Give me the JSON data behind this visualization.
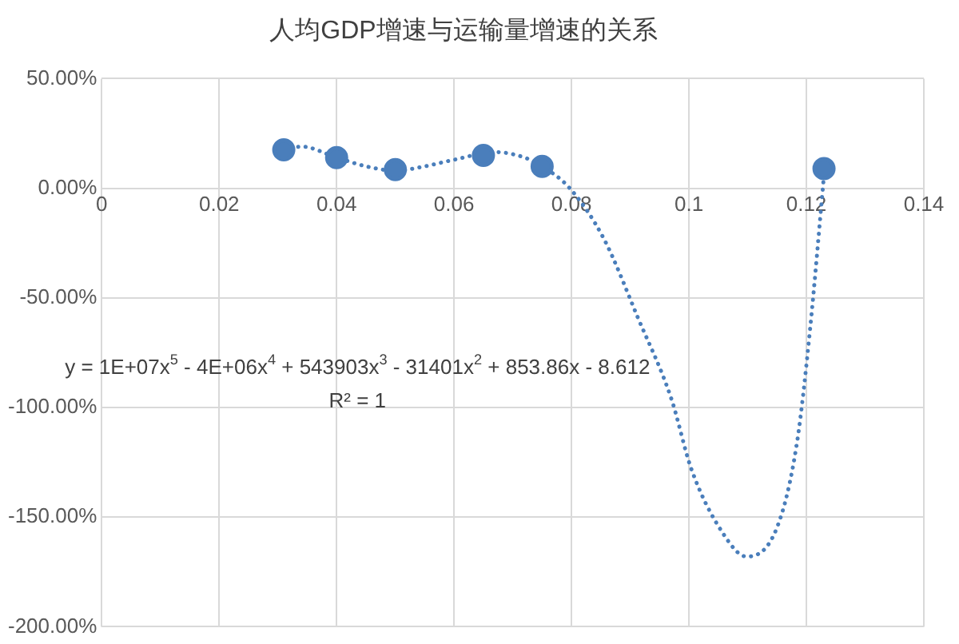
{
  "chart_data": {
    "type": "scatter",
    "title": "人均GDP增速与运输量增速的关系",
    "xlim": [
      0,
      0.14
    ],
    "xticks": [
      0,
      0.02,
      0.04,
      0.06,
      0.08,
      0.1,
      0.12,
      0.14
    ],
    "ylim": [
      -200,
      50
    ],
    "yticks": [
      {
        "value": 50,
        "label": "50.00%"
      },
      {
        "value": 0,
        "label": "0.00%"
      },
      {
        "value": -50,
        "label": "-50.00%"
      },
      {
        "value": -100,
        "label": "-100.00%"
      },
      {
        "value": -150,
        "label": "-150.00%"
      },
      {
        "value": -200,
        "label": "-200.00%"
      }
    ],
    "grid": true,
    "legend": false,
    "marker": "circle",
    "series": [
      {
        "type": "scatter",
        "color": "#4a7ebb",
        "x": [
          0.031,
          0.04,
          0.05,
          0.065,
          0.075,
          0.123
        ],
        "values": [
          17.5,
          14,
          8.5,
          15,
          10,
          9
        ]
      },
      {
        "type": "line",
        "color": "#4a7ebb",
        "line_style": "dotted",
        "marker": "none",
        "x": [
          0.031,
          0.034,
          0.04,
          0.045,
          0.05,
          0.055,
          0.06,
          0.067,
          0.072,
          0.075,
          0.0797,
          0.0855,
          0.0913,
          0.097,
          0.1004,
          0.1057,
          0.1098,
          0.1151,
          0.1184,
          0.1206,
          0.1231
        ],
        "values": [
          17.5,
          19,
          14,
          10,
          8,
          10,
          13,
          16.5,
          14,
          10,
          0,
          -23,
          -59,
          -96,
          -128,
          -157,
          -168,
          -154,
          -116,
          -65,
          9
        ]
      }
    ],
    "annotations": [
      "y = 1E+07x$^{5}$ - 4E+06x$^{4}$ + 543903x$^{3}$ - 31401x$^{2}$ + 853.86x - 8.612",
      "R² = 1"
    ]
  }
}
